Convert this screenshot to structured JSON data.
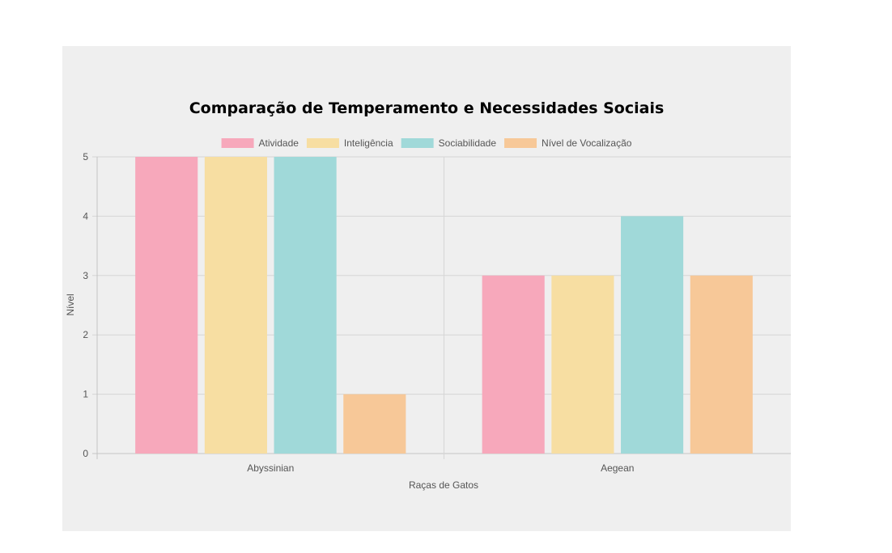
{
  "chart_data": {
    "type": "bar",
    "title": "Comparação de Temperamento e Necessidades Sociais",
    "xlabel": "Raças de Gatos",
    "ylabel": "Nível",
    "categories": [
      "Abyssinian",
      "Aegean"
    ],
    "ylim": [
      0,
      5
    ],
    "yticks": [
      "0",
      "1",
      "2",
      "3",
      "4",
      "5"
    ],
    "grid": true,
    "legend_position": "top",
    "series": [
      {
        "name": "Atividade",
        "values": [
          5,
          3
        ],
        "color": "#f7a8bb"
      },
      {
        "name": "Inteligência",
        "values": [
          5,
          3
        ],
        "color": "#f7dea2"
      },
      {
        "name": "Sociabilidade",
        "values": [
          5,
          4
        ],
        "color": "#a0d9d9"
      },
      {
        "name": "Nível de Vocalização",
        "values": [
          1,
          3
        ],
        "color": "#f7c898"
      }
    ]
  }
}
